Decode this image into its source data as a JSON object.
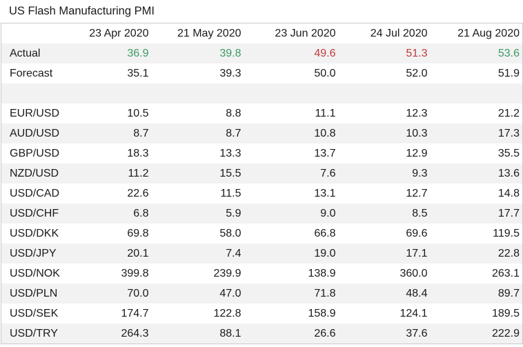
{
  "title": "US Flash Manufacturing PMI",
  "colors": {
    "beat": "#3a9a63",
    "miss": "#c0393b",
    "stripe": "#f2f2f2"
  },
  "chart_data": {
    "type": "table",
    "title": "US Flash Manufacturing PMI",
    "columns": [
      "23 Apr 2020",
      "21 May 2020",
      "23 Jun 2020",
      "24 Jul 2020",
      "21 Aug 2020"
    ],
    "rows": [
      {
        "label": "Actual",
        "values": [
          "36.9",
          "39.8",
          "49.6",
          "51.3",
          "53.6"
        ],
        "status": [
          "up",
          "up",
          "down",
          "down",
          "up"
        ]
      },
      {
        "label": "Forecast",
        "values": [
          "35.1",
          "39.3",
          "50.0",
          "52.0",
          "51.9"
        ]
      },
      {
        "label": "",
        "values": [
          "",
          "",
          "",
          "",
          ""
        ]
      },
      {
        "label": "EUR/USD",
        "values": [
          "10.5",
          "8.8",
          "11.1",
          "12.3",
          "21.2"
        ]
      },
      {
        "label": "AUD/USD",
        "values": [
          "8.7",
          "8.7",
          "10.8",
          "10.3",
          "17.3"
        ]
      },
      {
        "label": "GBP/USD",
        "values": [
          "18.3",
          "13.3",
          "13.7",
          "12.9",
          "35.5"
        ]
      },
      {
        "label": "NZD/USD",
        "values": [
          "11.2",
          "15.5",
          "7.6",
          "9.3",
          "13.6"
        ]
      },
      {
        "label": "USD/CAD",
        "values": [
          "22.6",
          "11.5",
          "13.1",
          "12.7",
          "14.8"
        ]
      },
      {
        "label": "USD/CHF",
        "values": [
          "6.8",
          "5.9",
          "9.0",
          "8.5",
          "17.7"
        ]
      },
      {
        "label": "USD/DKK",
        "values": [
          "69.8",
          "58.0",
          "66.8",
          "69.6",
          "119.5"
        ]
      },
      {
        "label": "USD/JPY",
        "values": [
          "20.1",
          "7.4",
          "19.0",
          "17.1",
          "22.8"
        ]
      },
      {
        "label": "USD/NOK",
        "values": [
          "399.8",
          "239.9",
          "138.9",
          "360.0",
          "263.1"
        ]
      },
      {
        "label": "USD/PLN",
        "values": [
          "70.0",
          "47.0",
          "71.8",
          "48.4",
          "89.7"
        ]
      },
      {
        "label": "USD/SEK",
        "values": [
          "174.7",
          "122.8",
          "158.9",
          "124.1",
          "189.5"
        ]
      },
      {
        "label": "USD/TRY",
        "values": [
          "264.3",
          "88.1",
          "26.6",
          "37.6",
          "222.9"
        ]
      }
    ]
  }
}
